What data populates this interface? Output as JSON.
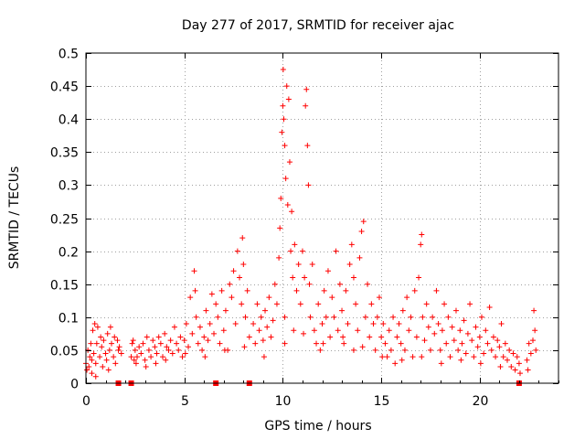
{
  "chart_data": {
    "type": "scatter",
    "title": "Day 277 of 2017, SRMTID for receiver ajac",
    "xlabel": "GPS time / hours",
    "ylabel": "SRMTID / TECUs",
    "xlim": [
      0,
      24
    ],
    "ylim": [
      0,
      0.5
    ],
    "xticks": [
      0,
      5,
      10,
      15,
      20
    ],
    "xtick_labels": [
      "0",
      "5",
      "10",
      "15",
      "20"
    ],
    "yticks": [
      0,
      0.05,
      0.1,
      0.15,
      0.2,
      0.25,
      0.3,
      0.35,
      0.4,
      0.45,
      0.5
    ],
    "ytick_labels": [
      "0",
      "0.05",
      "0.1",
      "0.15",
      "0.2",
      "0.25",
      "0.3",
      "0.35",
      "0.4",
      "0.45",
      "0.5"
    ],
    "grid": true,
    "marker": "plus",
    "color": "#ff0000",
    "series": [
      {
        "name": "SRMTID",
        "points": [
          [
            0.0,
            0.03
          ],
          [
            0.1,
            0.05
          ],
          [
            0.15,
            0.025
          ],
          [
            0.2,
            0.04
          ],
          [
            0.25,
            0.06
          ],
          [
            0.3,
            0.035
          ],
          [
            0.35,
            0.08
          ],
          [
            0.4,
            0.045
          ],
          [
            0.45,
            0.09
          ],
          [
            0.5,
            0.03
          ],
          [
            0.55,
            0.06
          ],
          [
            0.6,
            0.085
          ],
          [
            0.7,
            0.04
          ],
          [
            0.75,
            0.07
          ],
          [
            0.8,
            0.055
          ],
          [
            0.85,
            0.025
          ],
          [
            0.9,
            0.065
          ],
          [
            1.0,
            0.045
          ],
          [
            1.05,
            0.035
          ],
          [
            1.1,
            0.075
          ],
          [
            1.2,
            0.05
          ],
          [
            1.25,
            0.085
          ],
          [
            1.3,
            0.06
          ],
          [
            1.4,
            0.04
          ],
          [
            1.45,
            0.07
          ],
          [
            1.5,
            0.03
          ],
          [
            1.6,
            0.065
          ],
          [
            1.65,
            0.05
          ],
          [
            1.7,
            0.055
          ],
          [
            1.8,
            0.045
          ],
          [
            2.3,
            0.04
          ],
          [
            2.35,
            0.06
          ],
          [
            2.4,
            0.065
          ],
          [
            2.45,
            0.035
          ],
          [
            2.5,
            0.05
          ],
          [
            2.6,
            0.04
          ],
          [
            2.7,
            0.055
          ],
          [
            2.8,
            0.045
          ],
          [
            2.9,
            0.06
          ],
          [
            3.0,
            0.035
          ],
          [
            3.1,
            0.07
          ],
          [
            3.2,
            0.05
          ],
          [
            3.3,
            0.04
          ],
          [
            3.4,
            0.065
          ],
          [
            3.5,
            0.055
          ],
          [
            3.6,
            0.045
          ],
          [
            3.7,
            0.07
          ],
          [
            3.8,
            0.06
          ],
          [
            3.9,
            0.04
          ],
          [
            4.0,
            0.075
          ],
          [
            4.1,
            0.055
          ],
          [
            4.2,
            0.05
          ],
          [
            4.3,
            0.065
          ],
          [
            4.4,
            0.045
          ],
          [
            4.5,
            0.085
          ],
          [
            4.6,
            0.06
          ],
          [
            4.7,
            0.05
          ],
          [
            4.8,
            0.07
          ],
          [
            4.9,
            0.04
          ],
          [
            5.0,
            0.065
          ],
          [
            5.1,
            0.09
          ],
          [
            5.2,
            0.055
          ],
          [
            5.3,
            0.13
          ],
          [
            5.4,
            0.075
          ],
          [
            5.5,
            0.17
          ],
          [
            5.55,
            0.14
          ],
          [
            5.6,
            0.1
          ],
          [
            5.7,
            0.06
          ],
          [
            5.8,
            0.085
          ],
          [
            5.9,
            0.05
          ],
          [
            6.0,
            0.07
          ],
          [
            6.1,
            0.11
          ],
          [
            6.2,
            0.065
          ],
          [
            6.3,
            0.09
          ],
          [
            6.4,
            0.135
          ],
          [
            6.5,
            0.075
          ],
          [
            6.6,
            0.12
          ],
          [
            6.7,
            0.1
          ],
          [
            6.8,
            0.06
          ],
          [
            6.9,
            0.14
          ],
          [
            7.0,
            0.08
          ],
          [
            7.1,
            0.11
          ],
          [
            7.2,
            0.05
          ],
          [
            7.3,
            0.15
          ],
          [
            7.4,
            0.13
          ],
          [
            7.5,
            0.17
          ],
          [
            7.6,
            0.09
          ],
          [
            7.7,
            0.2
          ],
          [
            7.8,
            0.16
          ],
          [
            7.9,
            0.12
          ],
          [
            7.95,
            0.22
          ],
          [
            8.0,
            0.18
          ],
          [
            8.1,
            0.1
          ],
          [
            8.2,
            0.14
          ],
          [
            8.3,
            0.07
          ],
          [
            8.5,
            0.09
          ],
          [
            8.6,
            0.06
          ],
          [
            8.7,
            0.12
          ],
          [
            8.8,
            0.08
          ],
          [
            8.9,
            0.1
          ],
          [
            9.0,
            0.065
          ],
          [
            9.1,
            0.11
          ],
          [
            9.2,
            0.085
          ],
          [
            9.3,
            0.13
          ],
          [
            9.4,
            0.07
          ],
          [
            9.5,
            0.095
          ],
          [
            9.6,
            0.15
          ],
          [
            9.7,
            0.12
          ],
          [
            9.8,
            0.19
          ],
          [
            9.85,
            0.235
          ],
          [
            9.9,
            0.28
          ],
          [
            9.95,
            0.38
          ],
          [
            10.0,
            0.42
          ],
          [
            10.02,
            0.475
          ],
          [
            10.05,
            0.4
          ],
          [
            10.1,
            0.36
          ],
          [
            10.15,
            0.31
          ],
          [
            10.2,
            0.45
          ],
          [
            10.25,
            0.27
          ],
          [
            10.3,
            0.43
          ],
          [
            10.35,
            0.335
          ],
          [
            10.4,
            0.2
          ],
          [
            10.45,
            0.26
          ],
          [
            10.5,
            0.16
          ],
          [
            10.6,
            0.21
          ],
          [
            10.7,
            0.14
          ],
          [
            10.8,
            0.18
          ],
          [
            10.9,
            0.12
          ],
          [
            11.0,
            0.2
          ],
          [
            11.1,
            0.16
          ],
          [
            11.15,
            0.42
          ],
          [
            11.2,
            0.445
          ],
          [
            11.25,
            0.36
          ],
          [
            11.3,
            0.3
          ],
          [
            11.35,
            0.15
          ],
          [
            11.4,
            0.1
          ],
          [
            11.5,
            0.18
          ],
          [
            11.6,
            0.08
          ],
          [
            11.7,
            0.06
          ],
          [
            11.8,
            0.12
          ],
          [
            11.9,
            0.05
          ],
          [
            12.0,
            0.09
          ],
          [
            12.1,
            0.14
          ],
          [
            12.2,
            0.1
          ],
          [
            12.3,
            0.17
          ],
          [
            12.4,
            0.07
          ],
          [
            12.5,
            0.13
          ],
          [
            12.6,
            0.1
          ],
          [
            12.7,
            0.2
          ],
          [
            12.8,
            0.08
          ],
          [
            12.9,
            0.15
          ],
          [
            13.0,
            0.11
          ],
          [
            13.1,
            0.06
          ],
          [
            13.2,
            0.14
          ],
          [
            13.3,
            0.09
          ],
          [
            13.4,
            0.18
          ],
          [
            13.5,
            0.21
          ],
          [
            13.6,
            0.16
          ],
          [
            13.7,
            0.12
          ],
          [
            13.8,
            0.08
          ],
          [
            13.9,
            0.19
          ],
          [
            14.0,
            0.23
          ],
          [
            14.1,
            0.245
          ],
          [
            14.2,
            0.1
          ],
          [
            14.3,
            0.15
          ],
          [
            14.4,
            0.07
          ],
          [
            14.5,
            0.12
          ],
          [
            14.6,
            0.09
          ],
          [
            14.7,
            0.05
          ],
          [
            14.8,
            0.1
          ],
          [
            14.9,
            0.13
          ],
          [
            15.0,
            0.07
          ],
          [
            15.1,
            0.09
          ],
          [
            15.2,
            0.06
          ],
          [
            15.3,
            0.04
          ],
          [
            15.4,
            0.08
          ],
          [
            15.5,
            0.05
          ],
          [
            15.6,
            0.1
          ],
          [
            15.7,
            0.03
          ],
          [
            15.8,
            0.07
          ],
          [
            15.9,
            0.09
          ],
          [
            16.0,
            0.06
          ],
          [
            16.1,
            0.11
          ],
          [
            16.2,
            0.05
          ],
          [
            16.3,
            0.13
          ],
          [
            16.4,
            0.08
          ],
          [
            16.5,
            0.1
          ],
          [
            16.6,
            0.04
          ],
          [
            16.7,
            0.14
          ],
          [
            16.8,
            0.07
          ],
          [
            16.9,
            0.16
          ],
          [
            17.0,
            0.21
          ],
          [
            17.05,
            0.225
          ],
          [
            17.1,
            0.1
          ],
          [
            17.2,
            0.065
          ],
          [
            17.3,
            0.12
          ],
          [
            17.4,
            0.085
          ],
          [
            17.5,
            0.05
          ],
          [
            17.6,
            0.1
          ],
          [
            17.7,
            0.075
          ],
          [
            17.8,
            0.14
          ],
          [
            17.9,
            0.09
          ],
          [
            18.0,
            0.05
          ],
          [
            18.1,
            0.08
          ],
          [
            18.2,
            0.12
          ],
          [
            18.3,
            0.06
          ],
          [
            18.4,
            0.1
          ],
          [
            18.5,
            0.04
          ],
          [
            18.6,
            0.085
          ],
          [
            18.7,
            0.065
          ],
          [
            18.8,
            0.11
          ],
          [
            18.9,
            0.05
          ],
          [
            19.0,
            0.08
          ],
          [
            19.1,
            0.06
          ],
          [
            19.2,
            0.095
          ],
          [
            19.3,
            0.045
          ],
          [
            19.4,
            0.075
          ],
          [
            19.5,
            0.12
          ],
          [
            19.6,
            0.065
          ],
          [
            19.7,
            0.04
          ],
          [
            19.8,
            0.085
          ],
          [
            19.9,
            0.055
          ],
          [
            20.0,
            0.07
          ],
          [
            20.1,
            0.1
          ],
          [
            20.2,
            0.045
          ],
          [
            20.3,
            0.08
          ],
          [
            20.4,
            0.06
          ],
          [
            20.5,
            0.115
          ],
          [
            20.6,
            0.05
          ],
          [
            20.7,
            0.07
          ],
          [
            20.8,
            0.04
          ],
          [
            20.9,
            0.065
          ],
          [
            21.0,
            0.055
          ],
          [
            21.1,
            0.09
          ],
          [
            21.2,
            0.04
          ],
          [
            21.3,
            0.06
          ],
          [
            21.4,
            0.035
          ],
          [
            21.5,
            0.05
          ],
          [
            21.6,
            0.025
          ],
          [
            21.7,
            0.045
          ],
          [
            21.8,
            0.02
          ],
          [
            21.9,
            0.04
          ],
          [
            22.0,
            0.03
          ],
          [
            22.4,
            0.035
          ],
          [
            22.5,
            0.06
          ],
          [
            22.6,
            0.045
          ],
          [
            22.7,
            0.065
          ],
          [
            22.75,
            0.11
          ],
          [
            22.8,
            0.08
          ],
          [
            22.85,
            0.05
          ],
          [
            0.05,
            0.02
          ],
          [
            0.3,
            0.015
          ],
          [
            0.5,
            0.01
          ],
          [
            1.15,
            0.02
          ],
          [
            2.55,
            0.03
          ],
          [
            3.05,
            0.025
          ],
          [
            3.55,
            0.03
          ],
          [
            4.05,
            0.035
          ],
          [
            5.05,
            0.045
          ],
          [
            6.05,
            0.04
          ],
          [
            7.05,
            0.05
          ],
          [
            8.05,
            0.055
          ],
          [
            9.05,
            0.04
          ],
          [
            10.1,
            0.1
          ],
          [
            10.55,
            0.08
          ],
          [
            11.05,
            0.075
          ],
          [
            12.05,
            0.06
          ],
          [
            13.05,
            0.07
          ],
          [
            14.05,
            0.055
          ],
          [
            15.05,
            0.04
          ],
          [
            16.05,
            0.035
          ],
          [
            17.05,
            0.04
          ],
          [
            18.05,
            0.03
          ],
          [
            19.05,
            0.035
          ],
          [
            20.05,
            0.03
          ],
          [
            21.05,
            0.025
          ],
          [
            22.05,
            0.015
          ],
          [
            22.45,
            0.02
          ],
          [
            10.1,
            0.06
          ],
          [
            13.6,
            0.05
          ]
        ]
      }
    ],
    "zero_markers": [
      1.65,
      2.3,
      6.6,
      8.3,
      22.0
    ]
  }
}
